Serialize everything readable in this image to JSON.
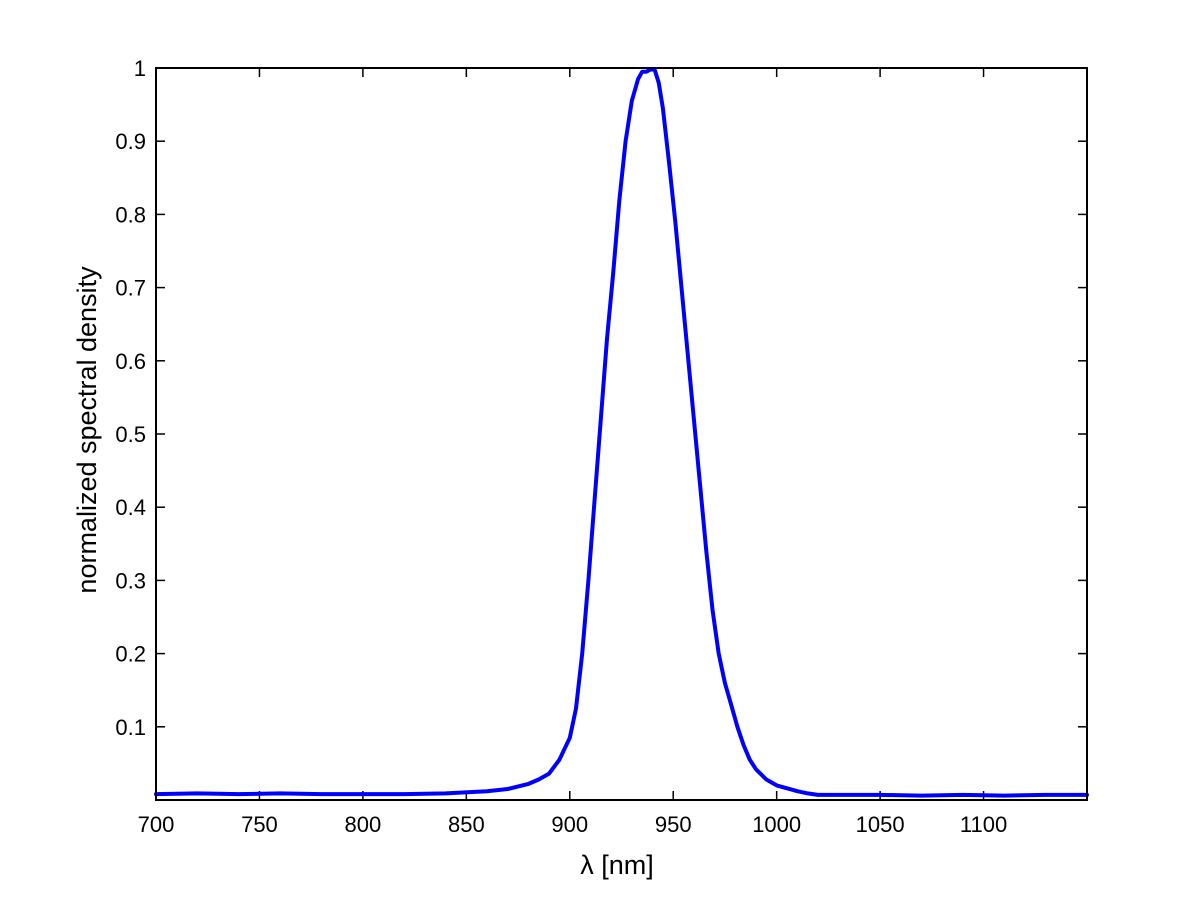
{
  "chart_data": {
    "type": "line",
    "title": "",
    "xlabel": "λ [nm]",
    "ylabel": "normalized spectral density",
    "xlim": [
      700,
      1150
    ],
    "ylim": [
      0,
      1
    ],
    "xticks": [
      700,
      750,
      800,
      850,
      900,
      950,
      1000,
      1050,
      1100
    ],
    "yticks": [
      0.1,
      0.2,
      0.3,
      0.4,
      0.5,
      0.6,
      0.7,
      0.8,
      0.9,
      1
    ],
    "xtick_labels": [
      "700",
      "750",
      "800",
      "850",
      "900",
      "950",
      "1000",
      "1050",
      "1100"
    ],
    "ytick_labels": [
      "0.1",
      "0.2",
      "0.3",
      "0.4",
      "0.5",
      "0.6",
      "0.7",
      "0.8",
      "0.9",
      "1"
    ],
    "grid": false,
    "legend": "none",
    "series": [
      {
        "color": "#0000ff",
        "x": [
          700,
          720,
          740,
          760,
          780,
          800,
          820,
          840,
          860,
          870,
          880,
          885,
          890,
          895,
          900,
          903,
          906,
          909,
          912,
          915,
          918,
          921,
          924,
          927,
          930,
          933,
          935,
          937,
          939,
          941,
          943,
          945,
          948,
          951,
          954,
          957,
          960,
          963,
          966,
          969,
          972,
          975,
          978,
          981,
          984,
          987,
          990,
          995,
          1000,
          1005,
          1010,
          1015,
          1020,
          1030,
          1050,
          1070,
          1090,
          1110,
          1130,
          1150
        ],
        "y": [
          0.008,
          0.009,
          0.008,
          0.009,
          0.008,
          0.008,
          0.008,
          0.009,
          0.012,
          0.015,
          0.022,
          0.028,
          0.036,
          0.055,
          0.085,
          0.125,
          0.2,
          0.3,
          0.41,
          0.52,
          0.63,
          0.72,
          0.82,
          0.9,
          0.955,
          0.985,
          0.995,
          0.995,
          0.998,
          0.998,
          0.98,
          0.945,
          0.87,
          0.79,
          0.7,
          0.61,
          0.52,
          0.43,
          0.34,
          0.26,
          0.2,
          0.16,
          0.13,
          0.1,
          0.075,
          0.055,
          0.042,
          0.028,
          0.02,
          0.016,
          0.012,
          0.009,
          0.007,
          0.007,
          0.007,
          0.006,
          0.007,
          0.006,
          0.007,
          0.007
        ]
      }
    ]
  }
}
